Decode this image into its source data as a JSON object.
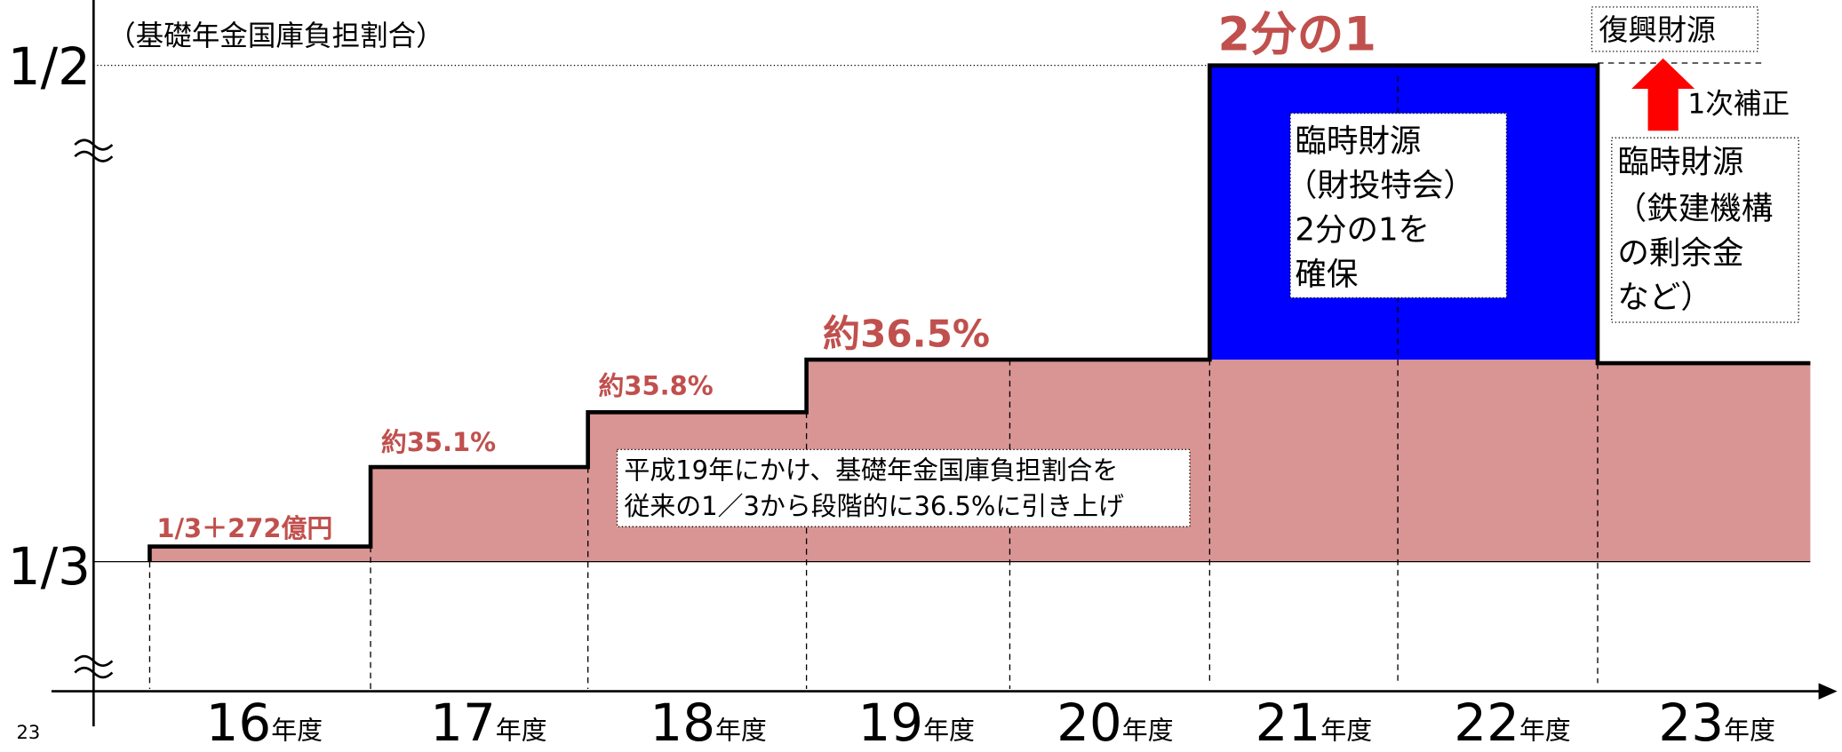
{
  "header_note": "（基礎年金国庫負担割合）",
  "y_labels": [
    "1/2",
    "1/3"
  ],
  "x_labels": [
    {
      "year": "16",
      "unit": "年度"
    },
    {
      "year": "17",
      "unit": "年度"
    },
    {
      "year": "18",
      "unit": "年度"
    },
    {
      "year": "19",
      "unit": "年度"
    },
    {
      "year": "20",
      "unit": "年度"
    },
    {
      "year": "21",
      "unit": "年度"
    },
    {
      "year": "22",
      "unit": "年度"
    },
    {
      "year": "23",
      "unit": "年度"
    }
  ],
  "step_labels": [
    "1/3＋272億円",
    "約35.1%",
    "約35.8%",
    "約36.5%",
    "2分の1"
  ],
  "note": [
    "平成19年にかけ、基礎年金国庫負担割合を",
    "従来の1／3から段階的に36.5%に引き上げ"
  ],
  "box_left": [
    "臨時財源",
    "（財投特会）",
    "2分の1を",
    "確保"
  ],
  "box_right": [
    "臨時財源",
    "（鉄建機構",
    "の剰余金",
    "など）"
  ],
  "reconstruction": "復興財源",
  "supplementary": "1次補正",
  "page_number": "23"
}
